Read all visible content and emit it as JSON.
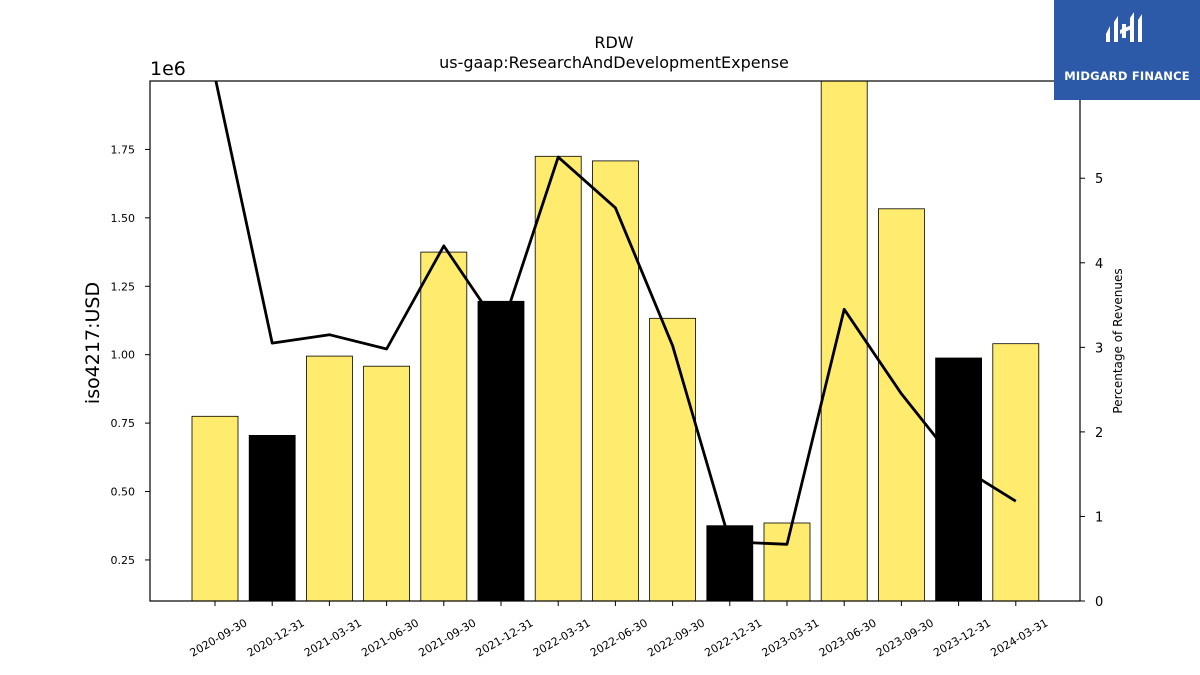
{
  "chart_data": {
    "type": "bar",
    "title": "RDW",
    "subtitle": "us-gaap:ResearchAndDevelopmentExpense",
    "ylabel": "iso4217:USD",
    "y_scale_label": "1e6",
    "y2label": "Percentage of Revenues",
    "categories": [
      "2020-09-30",
      "2020-12-31",
      "2021-03-31",
      "2021-06-30",
      "2021-09-30",
      "2021-12-31",
      "2022-03-31",
      "2022-06-30",
      "2022-09-30",
      "2022-12-31",
      "2023-03-31",
      "2023-06-30",
      "2023-09-30",
      "2023-12-31",
      "2024-03-31"
    ],
    "series": [
      {
        "type": "bar",
        "values": [
          0.775,
          0.705,
          0.995,
          0.958,
          1.375,
          1.195,
          1.725,
          1.708,
          1.133,
          0.375,
          0.385,
          2.0,
          1.533,
          0.988,
          1.04
        ],
        "colors": [
          "#ffec6e",
          "#000000",
          "#ffec6e",
          "#ffec6e",
          "#ffec6e",
          "#000000",
          "#ffec6e",
          "#ffec6e",
          "#ffec6e",
          "#000000",
          "#ffec6e",
          "#ffec6e",
          "#ffec6e",
          "#000000",
          "#ffec6e"
        ]
      },
      {
        "type": "line",
        "axis": "right",
        "values": [
          6.2,
          3.05,
          3.15,
          2.98,
          4.2,
          3.2,
          5.25,
          4.65,
          3.02,
          0.7,
          0.67,
          3.45,
          2.45,
          1.6,
          1.18
        ],
        "color": "#000000"
      }
    ],
    "ylim": [
      0.1,
      2.0
    ],
    "y2lim": [
      0,
      6.15
    ],
    "yticks": [
      0.25,
      0.5,
      0.75,
      1.0,
      1.25,
      1.5,
      1.75
    ],
    "ytick_labels": [
      "0.25",
      "0.50",
      "0.75",
      "1.00",
      "1.25",
      "1.50",
      "1.75"
    ],
    "y2ticks": [
      0,
      1,
      2,
      3,
      4,
      5
    ],
    "y2tick_labels": [
      "0",
      "1",
      "2",
      "3",
      "4",
      "5"
    ],
    "grid": false
  },
  "logo": {
    "text": "MIDGARD FINANCE"
  }
}
